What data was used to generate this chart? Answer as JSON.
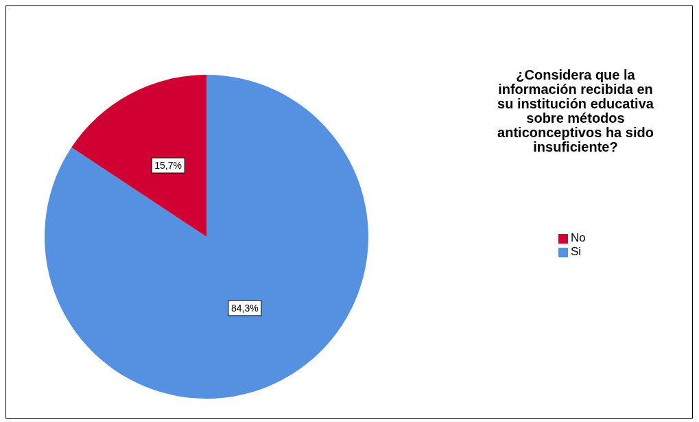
{
  "chart_data": {
    "type": "pie",
    "legend_title": "¿Considera que la información recibida en su institución educativa sobre métodos anticonceptivos ha sido insuficiente?",
    "categories": [
      "Si",
      "No"
    ],
    "values": [
      84.3,
      15.7
    ],
    "colors": [
      "#5591e0",
      "#d10033"
    ],
    "value_labels": [
      "84,3%",
      "15,7%"
    ],
    "legend": "right"
  }
}
